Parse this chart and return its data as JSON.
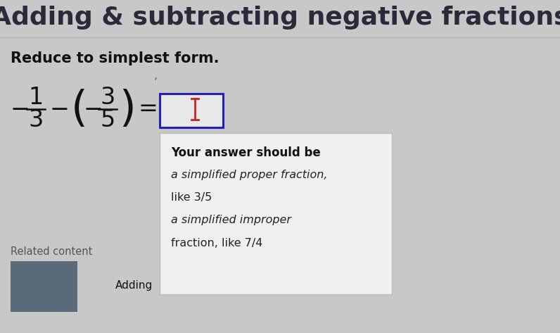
{
  "title": "Adding & subtracting negative fractions",
  "subtitle": "Reduce to simplest form.",
  "bg_color": "#c8c8c8",
  "title_color": "#2a2a3a",
  "title_fontsize": 26,
  "subtitle_fontsize": 15,
  "hint_box_bg": "#f0f0f0",
  "hint_box_border": "#bbbbbb",
  "hint_title": "Your answer should be",
  "hint_line1": "a simplified proper fraction,",
  "hint_line2": "like 3/5",
  "hint_line3": "a simplified improper",
  "hint_line4": "fraction, like 7/4",
  "related_content_label": "Related content",
  "adding_label": "Adding",
  "dark_box_color": "#5a6a7a",
  "input_box_border": "#2222bb",
  "input_box_bg": "#e8e8e8",
  "cursor_color": "#cc2222",
  "eq_fontsize": 24,
  "paren_fontsize": 44
}
